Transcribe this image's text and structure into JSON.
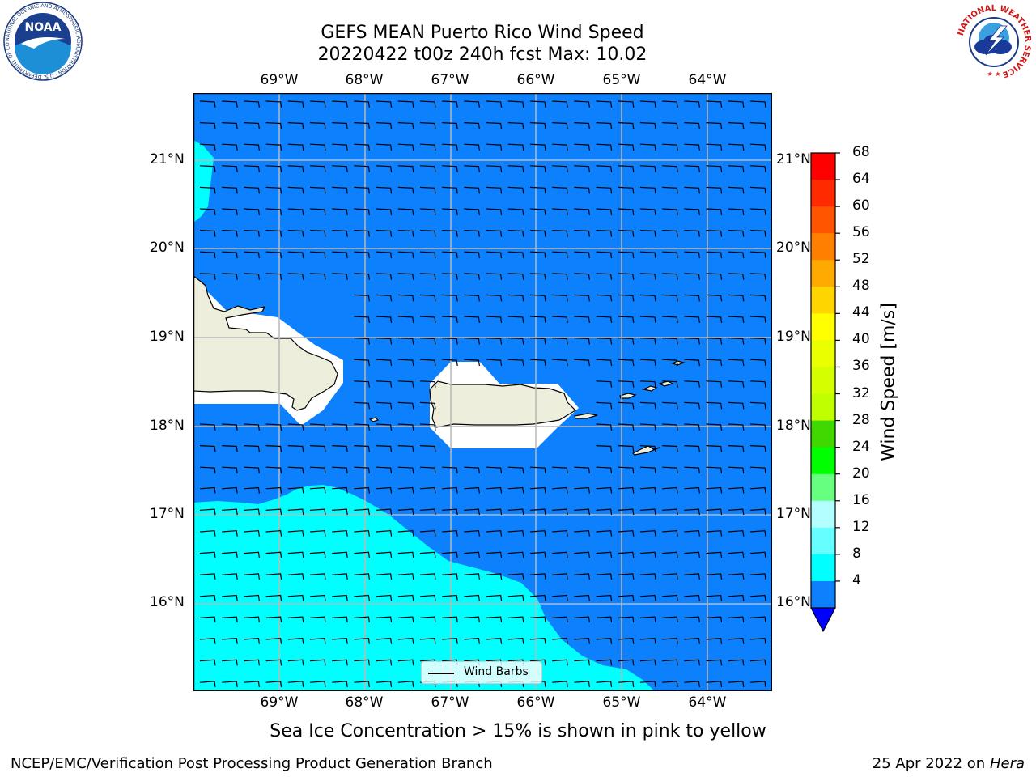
{
  "header": {
    "title_line1": "GEFS MEAN Puerto Rico Wind Speed",
    "title_line2": "20220422 t00z 240h fcst   Max: 10.02"
  },
  "logos": {
    "noaa_text": "NOAA",
    "noaa_ring_text": "NATIONAL OCEANIC AND ATMOSPHERIC ADMINISTRATION · U.S. DEPARTMENT OF COMMERCE",
    "nws_ring_text": "NATIONAL WEATHER SERVICE"
  },
  "map": {
    "lon_labels": [
      "69°W",
      "68°W",
      "67°W",
      "66°W",
      "65°W",
      "64°W"
    ],
    "lat_labels": [
      "21°N",
      "20°N",
      "19°N",
      "18°N",
      "17°N",
      "16°N"
    ],
    "legend_label": "Wind Barbs",
    "colors": {
      "ocean_4_8": "#0d80fe",
      "ocean_8_12": "#00ffff",
      "land": "#eeeedc",
      "masked": "#ffffff",
      "grid": "#b8b8b8"
    }
  },
  "colorbar": {
    "label": "Wind Speed [m/s]",
    "ticks": [
      "68",
      "64",
      "60",
      "56",
      "52",
      "48",
      "44",
      "40",
      "36",
      "32",
      "28",
      "24",
      "20",
      "16",
      "12",
      "8",
      "4"
    ],
    "colors_top_to_bottom": [
      "#ff0000",
      "#ff2a00",
      "#ff5500",
      "#ff8000",
      "#ffaa00",
      "#ffd500",
      "#ffff00",
      "#eaff00",
      "#d5ff00",
      "#bfff00",
      "#40d800",
      "#00ff00",
      "#66ff80",
      "#b3ffff",
      "#66ffff",
      "#00ffff",
      "#0d80fe"
    ],
    "extend_color": "#0000ff"
  },
  "caption": "Sea Ice Concentration > 15% is shown in pink to yellow",
  "footer": {
    "left": "NCEP/EMC/Verification Post Processing Product Generation Branch",
    "right_date": "25 Apr 2022 on ",
    "right_machine": "Hera"
  }
}
